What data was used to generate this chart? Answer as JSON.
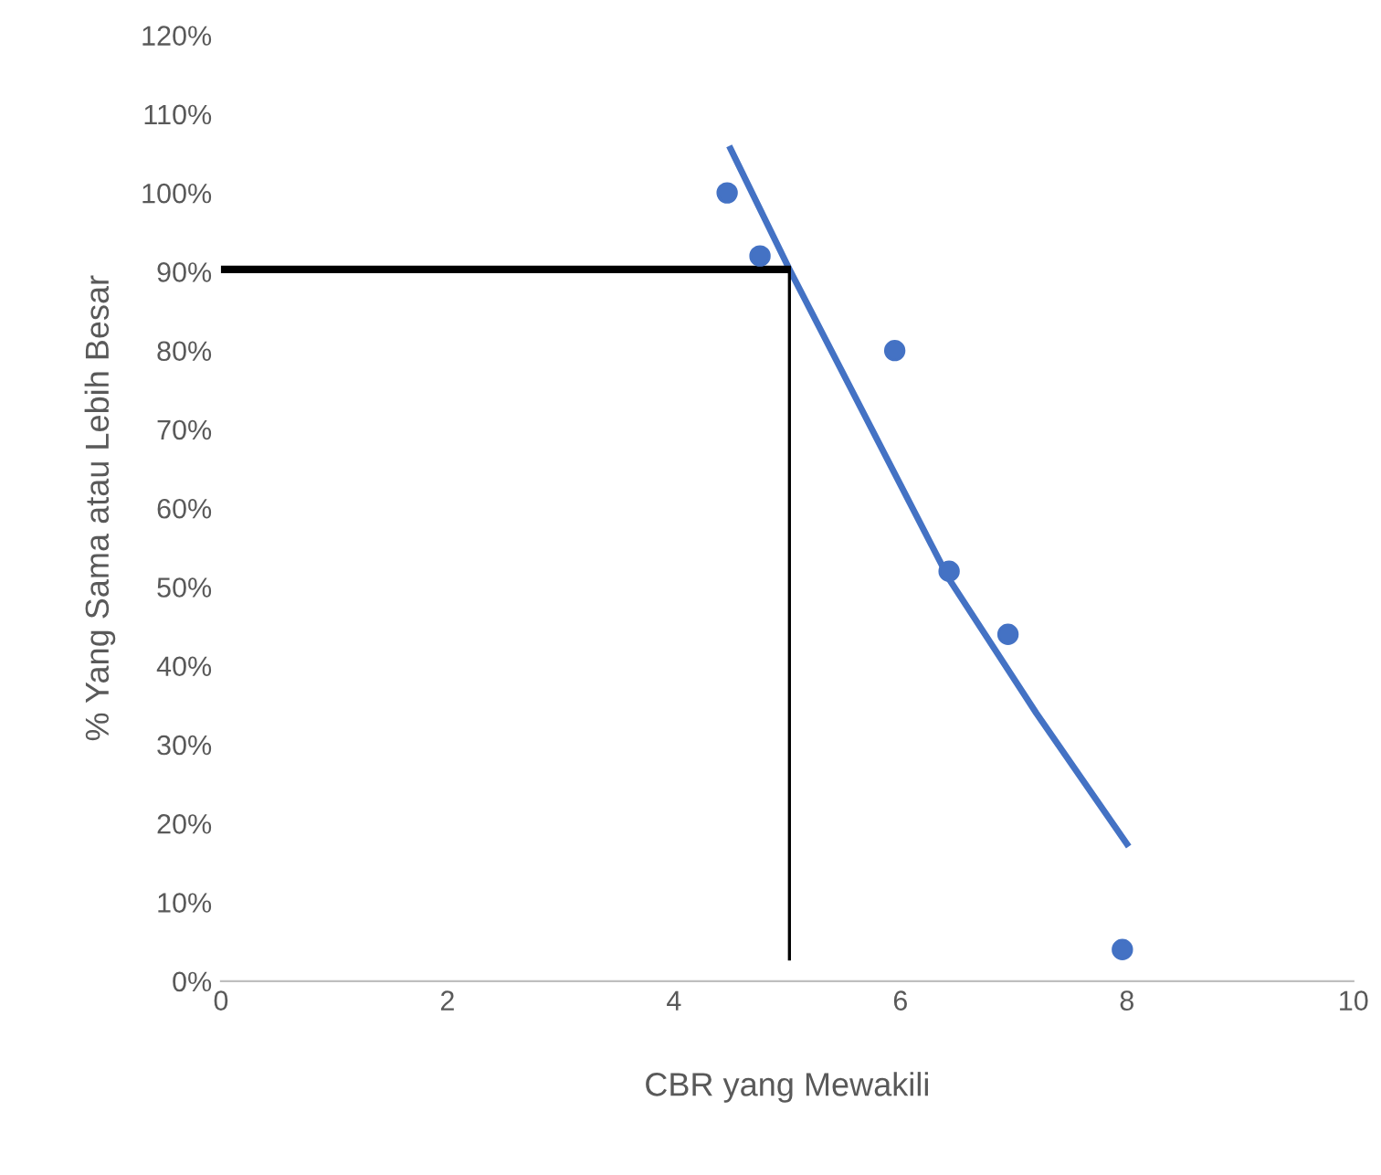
{
  "chart_data": {
    "type": "line",
    "xlabel": "CBR yang Mewakili",
    "ylabel": "% Yang Sama atau Lebih Besar",
    "xlim": [
      0,
      10
    ],
    "xticks": [
      0,
      2,
      4,
      6,
      8,
      10
    ],
    "ylim": [
      0,
      120
    ],
    "yticks": [
      {
        "value": 0,
        "label": "0%"
      },
      {
        "value": 10,
        "label": "10%"
      },
      {
        "value": 20,
        "label": "20%"
      },
      {
        "value": 30,
        "label": "30%"
      },
      {
        "value": 40,
        "label": "40%"
      },
      {
        "value": 50,
        "label": "50%"
      },
      {
        "value": 60,
        "label": "60%"
      },
      {
        "value": 70,
        "label": "70%"
      },
      {
        "value": 80,
        "label": "80%"
      },
      {
        "value": 90,
        "label": "90%"
      },
      {
        "value": 100,
        "label": "100%"
      },
      {
        "value": 110,
        "label": "110%"
      },
      {
        "value": 120,
        "label": "120%"
      }
    ],
    "grid": false,
    "legend": false,
    "series": [
      {
        "type": "scatter",
        "marker": "circle",
        "color": "#4472c4",
        "x": [
          4.47,
          4.76,
          5.95,
          6.43,
          6.95,
          7.96
        ],
        "values": [
          100,
          92,
          80,
          52,
          44,
          4
        ]
      },
      {
        "color": "#4472c4",
        "x": [
          4.5,
          5.02,
          6.43,
          7.2,
          8.0
        ],
        "values": [
          105.6,
          90.3,
          51,
          34,
          17.4
        ]
      },
      {
        "color": "#000000",
        "x": [
          0,
          5.0
        ],
        "values": [
          90.3,
          90.3
        ]
      },
      {
        "color": "#000000",
        "x": [
          5.02,
          5.02
        ],
        "values": [
          90.3,
          2.8
        ]
      }
    ]
  }
}
